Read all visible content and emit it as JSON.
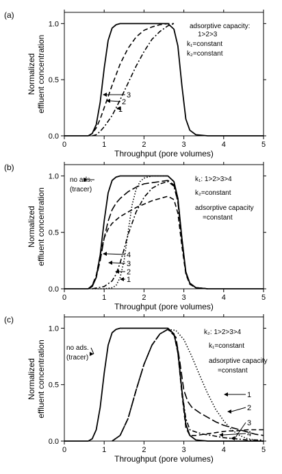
{
  "ylabel_line1": "Normalized",
  "ylabel_line2": "effluent concentration",
  "xlabel": "Throughput (pore volumes)",
  "x_ticks": [
    "0",
    "1",
    "2",
    "3",
    "4",
    "5"
  ],
  "y_ticks": [
    "0.0",
    "0.5",
    "1.0"
  ],
  "chart_data": [
    {
      "type": "line",
      "panel": "(a)",
      "xlabel": "Throughput (pore volumes)",
      "ylabel": "Normalized effluent concentration",
      "xlim": [
        0,
        5
      ],
      "ylim": [
        0,
        1.1
      ],
      "annotations": [
        "adsorptive capacity:",
        "1>2>3",
        "k₁=constant",
        "k₂=constant"
      ],
      "series": [
        {
          "name": "3",
          "style": "solid",
          "label": "3",
          "x": [
            0,
            0.6,
            0.7,
            0.8,
            0.9,
            1.0,
            1.1,
            1.2,
            1.3,
            1.4,
            1.5,
            1.7,
            2.0,
            2.6,
            2.75,
            2.85,
            2.95,
            3.05,
            3.15,
            3.3,
            3.6,
            5.0
          ],
          "y": [
            0,
            0,
            0.02,
            0.1,
            0.3,
            0.6,
            0.85,
            0.96,
            0.99,
            1.0,
            1.0,
            1.0,
            1.0,
            1.0,
            0.95,
            0.8,
            0.45,
            0.15,
            0.05,
            0.01,
            0,
            0
          ]
        },
        {
          "name": "2",
          "style": "dashed",
          "label": "2",
          "x": [
            0.6,
            0.7,
            0.8,
            0.9,
            1.0,
            1.2,
            1.4,
            1.6,
            1.8,
            2.0,
            2.2,
            2.4,
            2.6,
            2.75
          ],
          "y": [
            0,
            0.02,
            0.07,
            0.15,
            0.25,
            0.45,
            0.64,
            0.78,
            0.88,
            0.94,
            0.97,
            0.99,
            1.0,
            1.0
          ]
        },
        {
          "name": "1",
          "style": "dash-dot",
          "label": "1",
          "x": [
            0.7,
            0.8,
            0.9,
            1.0,
            1.2,
            1.4,
            1.6,
            1.8,
            2.0,
            2.2,
            2.4,
            2.6,
            2.75
          ],
          "y": [
            0,
            0.01,
            0.04,
            0.08,
            0.18,
            0.32,
            0.47,
            0.62,
            0.75,
            0.86,
            0.93,
            0.98,
            1.0
          ]
        }
      ]
    },
    {
      "type": "line",
      "panel": "(b)",
      "xlabel": "Throughput (pore volumes)",
      "ylabel": "Normalized effluent concentration",
      "xlim": [
        0,
        5
      ],
      "ylim": [
        0,
        1.1
      ],
      "annotations": [
        "k₁: 1>2>3>4",
        "k₂=constant",
        "adsorptive capacity",
        "=constant",
        "no ads.",
        "(tracer)"
      ],
      "series": [
        {
          "name": "no ads. (tracer)",
          "style": "solid",
          "x": [
            0,
            0.6,
            0.7,
            0.8,
            0.9,
            1.0,
            1.1,
            1.2,
            1.3,
            1.4,
            1.5,
            2.0,
            2.6,
            2.75,
            2.85,
            2.95,
            3.05,
            3.15,
            3.3,
            3.6,
            5.0
          ],
          "y": [
            0,
            0,
            0.02,
            0.1,
            0.3,
            0.6,
            0.85,
            0.96,
            0.99,
            1.0,
            1.0,
            1.0,
            1.0,
            0.95,
            0.8,
            0.45,
            0.15,
            0.05,
            0.01,
            0,
            0
          ]
        },
        {
          "name": "1",
          "style": "dotted",
          "label": "1",
          "x": [
            0.7,
            1.0,
            1.2,
            1.3,
            1.4,
            1.5,
            1.6,
            1.7,
            1.8,
            1.9,
            2.0,
            2.2,
            2.6,
            2.75,
            2.85,
            2.95,
            3.05,
            3.15,
            3.3,
            3.6
          ],
          "y": [
            0,
            0,
            0.01,
            0.03,
            0.1,
            0.25,
            0.5,
            0.74,
            0.88,
            0.95,
            0.98,
            1.0,
            1.0,
            0.95,
            0.8,
            0.45,
            0.15,
            0.05,
            0.01,
            0
          ]
        },
        {
          "name": "2",
          "style": "dash-dot",
          "label": "2",
          "x": [
            0.7,
            1.0,
            1.2,
            1.3,
            1.4,
            1.5,
            1.6,
            1.8,
            2.0,
            2.2,
            2.4,
            2.6,
            2.75,
            2.85,
            2.95,
            3.05,
            3.15,
            3.3,
            3.6
          ],
          "y": [
            0,
            0.02,
            0.07,
            0.13,
            0.23,
            0.35,
            0.48,
            0.68,
            0.81,
            0.89,
            0.93,
            0.95,
            0.91,
            0.77,
            0.43,
            0.14,
            0.05,
            0.01,
            0
          ]
        },
        {
          "name": "3",
          "style": "long-dash",
          "label": "3",
          "x": [
            0.6,
            0.7,
            0.8,
            0.9,
            1.0,
            1.1,
            1.2,
            1.3,
            1.4,
            1.5,
            1.6,
            1.8,
            2.0,
            2.4,
            2.6,
            2.75,
            2.85,
            2.95,
            3.05,
            3.15,
            3.3,
            3.6
          ],
          "y": [
            0,
            0.03,
            0.1,
            0.25,
            0.45,
            0.6,
            0.7,
            0.76,
            0.8,
            0.83,
            0.86,
            0.9,
            0.93,
            0.95,
            0.96,
            0.92,
            0.77,
            0.43,
            0.14,
            0.05,
            0.01,
            0
          ]
        },
        {
          "name": "4",
          "style": "dashed",
          "label": "4",
          "x": [
            0.6,
            0.7,
            0.8,
            0.9,
            1.0,
            1.1,
            1.2,
            1.4,
            1.6,
            1.8,
            2.0,
            2.2,
            2.4,
            2.6,
            2.75,
            2.85,
            2.95,
            3.05,
            3.15,
            3.3,
            3.6
          ],
          "y": [
            0,
            0.03,
            0.12,
            0.3,
            0.45,
            0.53,
            0.58,
            0.64,
            0.68,
            0.72,
            0.75,
            0.78,
            0.8,
            0.82,
            0.79,
            0.67,
            0.38,
            0.13,
            0.04,
            0.01,
            0
          ]
        }
      ]
    },
    {
      "type": "line",
      "panel": "(c)",
      "xlabel": "Throughput (pore volumes)",
      "ylabel": "Normalized effluent concentration",
      "xlim": [
        0,
        5
      ],
      "ylim": [
        0,
        1.1
      ],
      "annotations": [
        "k₂: 1>2>3>4",
        "k₁=constant",
        "adsorptive capacity",
        "=constant",
        "no ads.",
        "(tracer)"
      ],
      "series": [
        {
          "name": "no ads. (tracer)",
          "style": "solid",
          "x": [
            0,
            0.6,
            0.7,
            0.8,
            0.9,
            1.0,
            1.1,
            1.2,
            1.3,
            1.4,
            1.5,
            2.0,
            2.6,
            2.75,
            2.85,
            2.95,
            3.05,
            3.15,
            3.3,
            3.6,
            5.0
          ],
          "y": [
            0,
            0,
            0.02,
            0.1,
            0.3,
            0.6,
            0.85,
            0.96,
            0.99,
            1.0,
            1.0,
            1.0,
            1.0,
            0.95,
            0.8,
            0.45,
            0.15,
            0.05,
            0.01,
            0,
            0
          ]
        },
        {
          "name": "1",
          "style": "dotted",
          "label": "1",
          "x": [
            1.2,
            1.4,
            1.6,
            1.8,
            2.0,
            2.2,
            2.4,
            2.6,
            2.8,
            3.0,
            3.2,
            3.4,
            3.6,
            3.8,
            4.0,
            4.2,
            4.4,
            4.6,
            4.8,
            5.0
          ],
          "y": [
            0,
            0.05,
            0.2,
            0.45,
            0.68,
            0.85,
            0.95,
            0.99,
            0.98,
            0.9,
            0.75,
            0.58,
            0.42,
            0.28,
            0.18,
            0.1,
            0.05,
            0.02,
            0.01,
            0
          ]
        },
        {
          "name": "2",
          "style": "long-dash",
          "label": "2",
          "x": [
            1.2,
            1.4,
            1.6,
            1.8,
            2.0,
            2.2,
            2.4,
            2.6,
            2.8,
            2.9,
            3.0,
            3.1,
            3.2,
            3.4,
            3.6,
            3.8,
            4.0,
            4.2,
            4.4,
            4.6,
            4.8,
            5.0
          ],
          "y": [
            0,
            0.05,
            0.2,
            0.45,
            0.68,
            0.85,
            0.95,
            0.99,
            0.92,
            0.7,
            0.45,
            0.35,
            0.3,
            0.25,
            0.21,
            0.17,
            0.14,
            0.12,
            0.1,
            0.08,
            0.06,
            0.05
          ]
        },
        {
          "name": "3",
          "style": "dash-dot",
          "label": "3",
          "x": [
            1.2,
            1.4,
            1.6,
            1.8,
            2.0,
            2.2,
            2.4,
            2.6,
            2.75,
            2.85,
            2.95,
            3.05,
            3.15,
            3.3,
            3.5,
            3.7,
            4.0,
            4.3,
            4.6,
            5.0
          ],
          "y": [
            0,
            0.05,
            0.2,
            0.45,
            0.68,
            0.85,
            0.95,
            0.99,
            0.95,
            0.78,
            0.45,
            0.2,
            0.1,
            0.08,
            0.06,
            0.05,
            0.03,
            0.02,
            0.01,
            0.01
          ]
        },
        {
          "name": "4",
          "style": "dashed",
          "label": "4",
          "x": [
            1.2,
            1.4,
            1.6,
            1.8,
            2.0,
            2.2,
            2.4,
            2.6,
            2.75,
            2.85,
            2.95,
            3.05,
            3.15,
            3.3,
            3.5,
            3.7,
            3.9,
            4.1,
            4.3,
            4.6,
            5.0
          ],
          "y": [
            0,
            0.05,
            0.2,
            0.45,
            0.68,
            0.85,
            0.95,
            0.99,
            0.95,
            0.78,
            0.42,
            0.12,
            0.05,
            0.05,
            0.06,
            0.07,
            0.08,
            0.09,
            0.09,
            0.1,
            0.1
          ]
        }
      ]
    }
  ]
}
